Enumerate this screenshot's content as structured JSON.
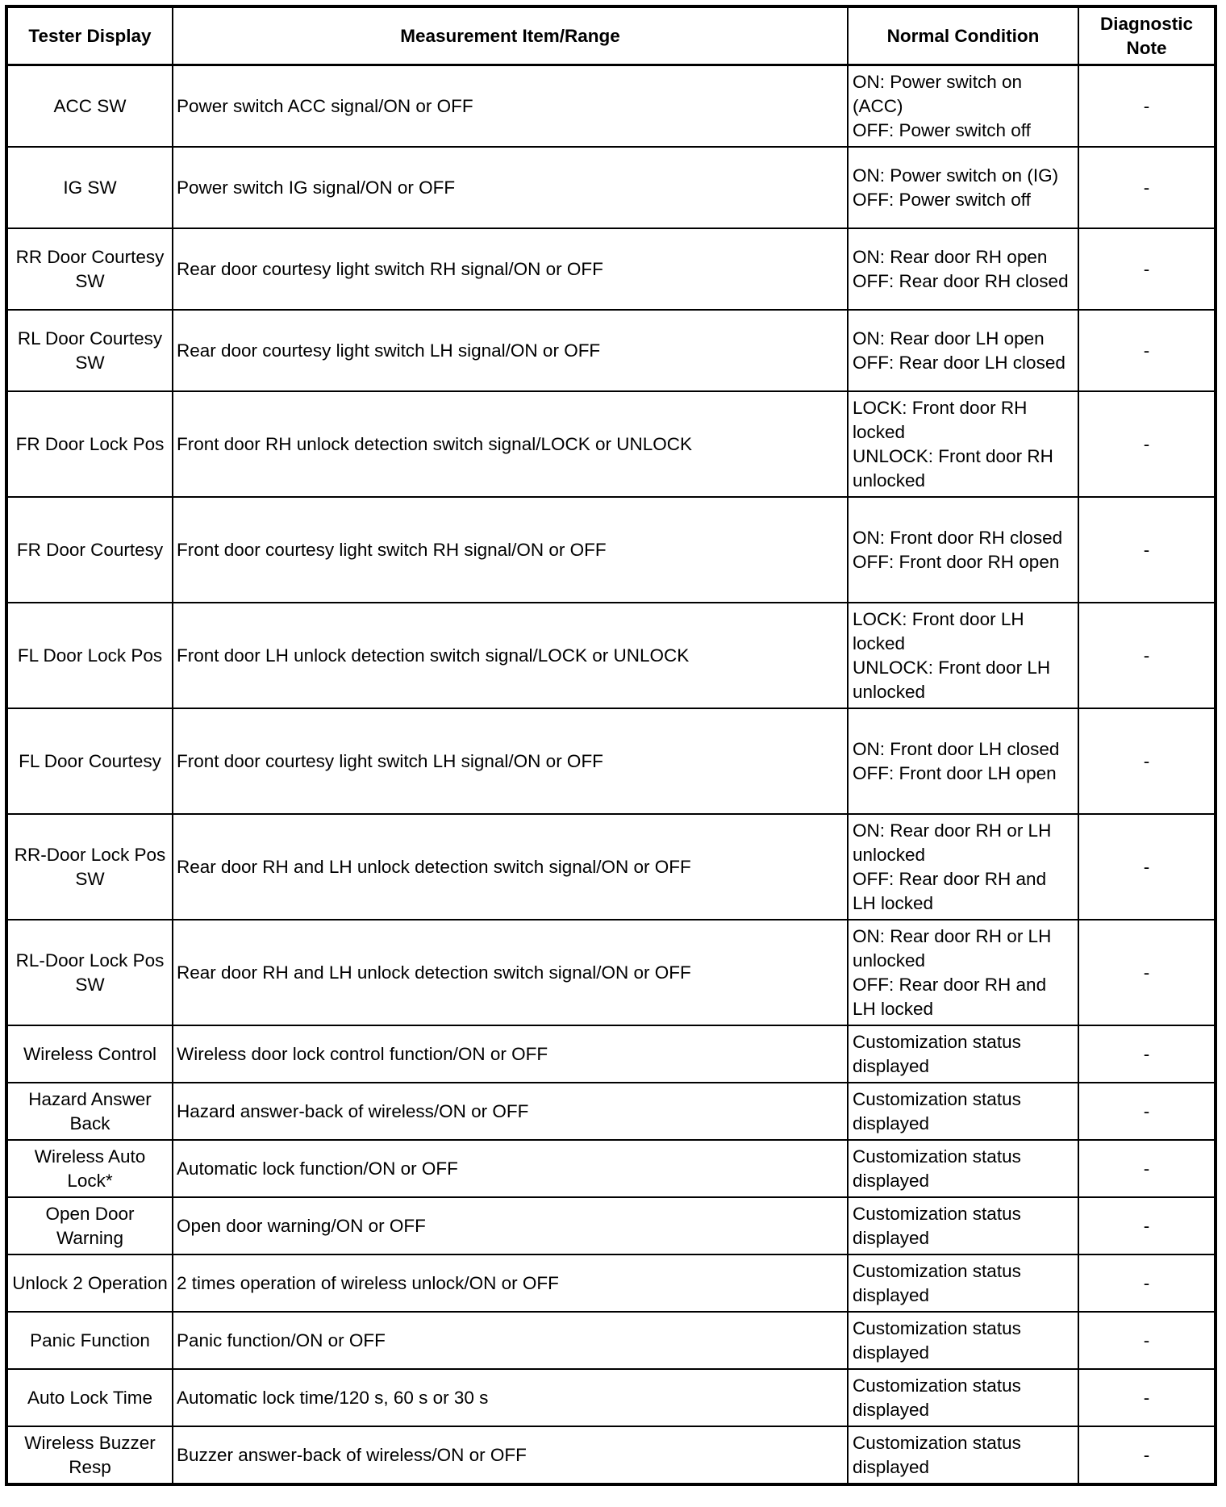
{
  "table": {
    "headers": [
      "Tester Display",
      "Measurement Item/Range",
      "Normal Condition",
      "Diagnostic Note"
    ],
    "rows": [
      {
        "display": "ACC SW",
        "item": "Power switch ACC signal/ON or OFF",
        "condition": "ON: Power switch on (ACC)\nOFF: Power switch off",
        "note": "-",
        "size": "r4"
      },
      {
        "display": "IG SW",
        "item": "Power switch IG signal/ON or OFF",
        "condition": "ON: Power switch on (IG)\nOFF: Power switch off",
        "note": "-",
        "size": "r4"
      },
      {
        "display": "RR Door Courtesy SW",
        "item": "Rear door courtesy light switch RH signal/ON or OFF",
        "condition": "ON: Rear door RH open\nOFF: Rear door RH closed",
        "note": "-",
        "size": "r4"
      },
      {
        "display": "RL Door Courtesy SW",
        "item": "Rear door courtesy light switch LH signal/ON or OFF",
        "condition": "ON: Rear door LH open\nOFF: Rear door LH closed",
        "note": "-",
        "size": "r4"
      },
      {
        "display": "FR Door Lock Pos",
        "item": "Front door RH unlock detection switch signal/LOCK or UNLOCK",
        "condition": "LOCK: Front door RH locked\nUNLOCK: Front door RH unlocked",
        "note": "-",
        "size": "r3"
      },
      {
        "display": "FR Door Courtesy",
        "item": "Front door courtesy light switch RH signal/ON or OFF",
        "condition": "ON: Front door RH closed\nOFF: Front door RH open",
        "note": "-",
        "size": "r3"
      },
      {
        "display": "FL Door Lock Pos",
        "item": "Front door LH unlock detection switch signal/LOCK or UNLOCK",
        "condition": "LOCK: Front door LH locked\nUNLOCK: Front door LH unlocked",
        "note": "-",
        "size": "r3"
      },
      {
        "display": "FL Door Courtesy",
        "item": "Front door courtesy light switch LH signal/ON or OFF",
        "condition": "ON: Front door LH closed\nOFF: Front door LH open",
        "note": "-",
        "size": "r3"
      },
      {
        "display": "RR-Door Lock Pos SW",
        "item": "Rear door RH and LH unlock detection switch signal/ON or OFF",
        "condition": "ON: Rear door RH or LH unlocked\nOFF: Rear door RH and LH locked",
        "note": "-",
        "size": "r3"
      },
      {
        "display": "RL-Door Lock Pos SW",
        "item": "Rear door RH and LH unlock detection switch signal/ON or OFF",
        "condition": "ON: Rear door RH or LH unlocked\nOFF: Rear door RH and LH locked",
        "note": "-",
        "size": "r3"
      },
      {
        "display": "Wireless Control",
        "item": "Wireless door lock control function/ON or OFF",
        "condition": "Customization status displayed",
        "note": "-",
        "size": "r2"
      },
      {
        "display": "Hazard Answer Back",
        "item": "Hazard answer-back of wireless/ON or OFF",
        "condition": "Customization status displayed",
        "note": "-",
        "size": "r2"
      },
      {
        "display": "Wireless Auto Lock*",
        "item": "Automatic lock function/ON or OFF",
        "condition": "Customization status displayed",
        "note": "-",
        "size": "r2"
      },
      {
        "display": "Open Door Warning",
        "item": "Open door warning/ON or OFF",
        "condition": "Customization status displayed",
        "note": "-",
        "size": "r2"
      },
      {
        "display": "Unlock 2 Operation",
        "item": "2 times operation of wireless unlock/ON or OFF",
        "condition": "Customization status displayed",
        "note": "-",
        "size": "r2"
      },
      {
        "display": "Panic Function",
        "item": "Panic function/ON or OFF",
        "condition": "Customization status displayed",
        "note": "-",
        "size": "r2"
      },
      {
        "display": "Auto Lock Time",
        "item": "Automatic lock time/120 s, 60 s or 30 s",
        "condition": "Customization status displayed",
        "note": "-",
        "size": "r2"
      },
      {
        "display": "Wireless Buzzer Resp",
        "item": "Buzzer answer-back of wireless/ON or OFF",
        "condition": "Customization status displayed",
        "note": "-",
        "size": "r2"
      }
    ]
  }
}
